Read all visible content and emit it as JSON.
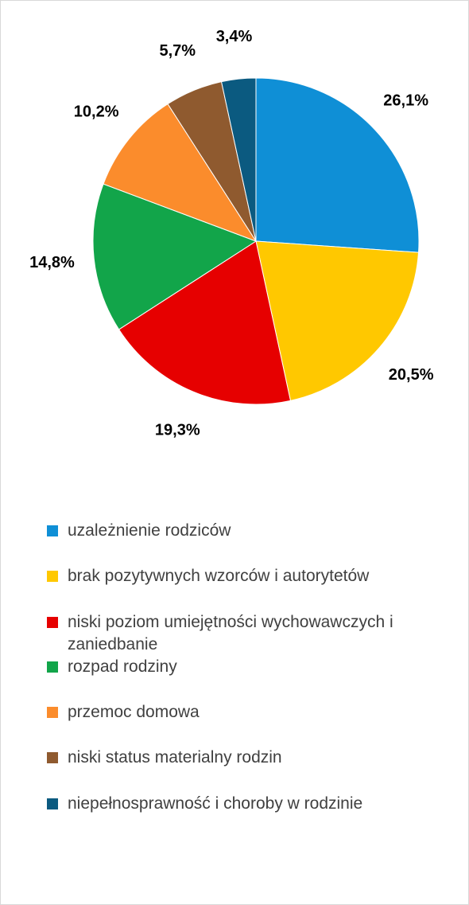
{
  "chart_data": {
    "type": "pie",
    "categories": [
      "uzależnienie rodziców",
      "brak pozytywnych wzorców i autorytetów",
      "niski poziom umiejętności wychowawczych i zaniedbanie",
      "rozpad rodziny",
      "przemoc domowa",
      "niski status materialny rodzin",
      "niepełnosprawność i choroby w rodzinie"
    ],
    "values": [
      26.1,
      20.5,
      19.3,
      14.8,
      10.2,
      5.7,
      3.4
    ],
    "value_labels": [
      "26,1%",
      "20,5%",
      "19,3%",
      "14,8%",
      "10,2%",
      "5,7%",
      "3,4%"
    ],
    "colors": [
      "#0f8fd6",
      "#ffc800",
      "#e60000",
      "#12a54a",
      "#fb8c2c",
      "#8f5a2f",
      "#0b5a80"
    ],
    "legend": "bottom"
  }
}
